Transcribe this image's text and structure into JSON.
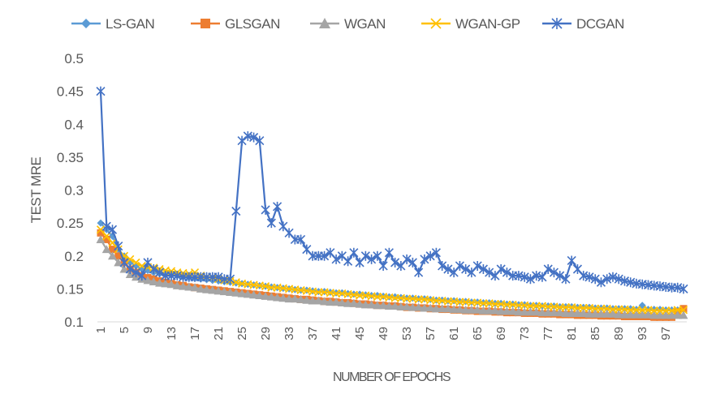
{
  "chart_data": {
    "type": "line",
    "title": "",
    "xlabel": "NUMBER OF EPOCHS",
    "ylabel": "TEST MRE",
    "ylim": [
      0.1,
      0.5
    ],
    "yticks": [
      "0.1",
      "0.15",
      "0.2",
      "0.25",
      "0.3",
      "0.35",
      "0.4",
      "0.45",
      "0.5"
    ],
    "xticks": [
      "1",
      "5",
      "9",
      "13",
      "17",
      "21",
      "25",
      "29",
      "33",
      "37",
      "41",
      "45",
      "49",
      "53",
      "57",
      "61",
      "65",
      "69",
      "73",
      "77",
      "81",
      "85",
      "89",
      "93",
      "97"
    ],
    "x_range": [
      1,
      100
    ],
    "grid": false,
    "legend_position": "top",
    "series": [
      {
        "name": "LS-GAN",
        "color": "#5B9BD5",
        "marker": "diamond",
        "values": [
          0.25,
          0.24,
          0.23,
          0.21,
          0.2,
          0.19,
          0.185,
          0.18,
          0.178,
          0.175,
          0.173,
          0.172,
          0.171,
          0.17,
          0.168,
          0.167,
          0.166,
          0.165,
          0.164,
          0.163,
          0.162,
          0.161,
          0.16,
          0.159,
          0.158,
          0.157,
          0.156,
          0.155,
          0.154,
          0.153,
          0.152,
          0.151,
          0.15,
          0.149,
          0.148,
          0.148,
          0.147,
          0.146,
          0.146,
          0.145,
          0.144,
          0.144,
          0.143,
          0.142,
          0.142,
          0.141,
          0.14,
          0.14,
          0.139,
          0.138,
          0.138,
          0.137,
          0.136,
          0.136,
          0.135,
          0.135,
          0.134,
          0.133,
          0.133,
          0.132,
          0.132,
          0.131,
          0.131,
          0.13,
          0.13,
          0.129,
          0.129,
          0.128,
          0.128,
          0.127,
          0.127,
          0.126,
          0.126,
          0.125,
          0.125,
          0.124,
          0.124,
          0.124,
          0.123,
          0.123,
          0.123,
          0.122,
          0.122,
          0.122,
          0.121,
          0.121,
          0.121,
          0.12,
          0.12,
          0.12,
          0.12,
          0.119,
          0.125,
          0.119,
          0.119,
          0.119,
          0.118,
          0.118,
          0.118,
          0.12
        ]
      },
      {
        "name": "GLSGAN",
        "color": "#ED7D31",
        "marker": "square",
        "values": [
          0.235,
          0.225,
          0.21,
          0.2,
          0.19,
          0.18,
          0.175,
          0.17,
          0.167,
          0.165,
          0.162,
          0.16,
          0.158,
          0.156,
          0.155,
          0.153,
          0.152,
          0.151,
          0.15,
          0.149,
          0.148,
          0.147,
          0.146,
          0.145,
          0.144,
          0.143,
          0.142,
          0.141,
          0.14,
          0.139,
          0.138,
          0.137,
          0.136,
          0.135,
          0.134,
          0.134,
          0.133,
          0.132,
          0.131,
          0.131,
          0.13,
          0.129,
          0.129,
          0.128,
          0.127,
          0.127,
          0.126,
          0.125,
          0.125,
          0.124,
          0.124,
          0.123,
          0.122,
          0.122,
          0.121,
          0.121,
          0.12,
          0.12,
          0.119,
          0.119,
          0.118,
          0.118,
          0.117,
          0.117,
          0.116,
          0.116,
          0.116,
          0.115,
          0.115,
          0.114,
          0.114,
          0.114,
          0.113,
          0.113,
          0.113,
          0.112,
          0.112,
          0.112,
          0.111,
          0.111,
          0.111,
          0.11,
          0.11,
          0.11,
          0.11,
          0.109,
          0.109,
          0.109,
          0.109,
          0.108,
          0.108,
          0.108,
          0.108,
          0.108,
          0.107,
          0.107,
          0.107,
          0.107,
          0.115,
          0.12
        ]
      },
      {
        "name": "WGAN",
        "color": "#A5A5A5",
        "marker": "triangle",
        "values": [
          0.225,
          0.21,
          0.2,
          0.19,
          0.18,
          0.172,
          0.168,
          0.165,
          0.163,
          0.161,
          0.159,
          0.158,
          0.157,
          0.155,
          0.154,
          0.153,
          0.152,
          0.15,
          0.149,
          0.148,
          0.147,
          0.146,
          0.145,
          0.144,
          0.143,
          0.142,
          0.141,
          0.14,
          0.139,
          0.138,
          0.137,
          0.136,
          0.135,
          0.135,
          0.134,
          0.133,
          0.132,
          0.132,
          0.131,
          0.13,
          0.13,
          0.129,
          0.128,
          0.128,
          0.127,
          0.126,
          0.126,
          0.125,
          0.125,
          0.124,
          0.124,
          0.123,
          0.123,
          0.122,
          0.122,
          0.121,
          0.121,
          0.12,
          0.12,
          0.12,
          0.119,
          0.119,
          0.118,
          0.118,
          0.118,
          0.117,
          0.117,
          0.117,
          0.116,
          0.116,
          0.116,
          0.115,
          0.115,
          0.115,
          0.115,
          0.114,
          0.114,
          0.114,
          0.114,
          0.113,
          0.113,
          0.113,
          0.113,
          0.112,
          0.112,
          0.112,
          0.112,
          0.112,
          0.111,
          0.111,
          0.111,
          0.111,
          0.111,
          0.111,
          0.11,
          0.11,
          0.11,
          0.11,
          0.11,
          0.11
        ]
      },
      {
        "name": "WGAN-GP",
        "color": "#FFC000",
        "marker": "x",
        "values": [
          0.24,
          0.23,
          0.22,
          0.21,
          0.2,
          0.195,
          0.19,
          0.185,
          0.183,
          0.182,
          0.18,
          0.178,
          0.177,
          0.175,
          0.174,
          0.173,
          0.175,
          0.17,
          0.168,
          0.167,
          0.165,
          0.163,
          0.162,
          0.16,
          0.158,
          0.157,
          0.156,
          0.155,
          0.154,
          0.152,
          0.152,
          0.151,
          0.15,
          0.149,
          0.148,
          0.147,
          0.146,
          0.145,
          0.145,
          0.144,
          0.143,
          0.143,
          0.142,
          0.141,
          0.14,
          0.14,
          0.139,
          0.138,
          0.138,
          0.137,
          0.136,
          0.136,
          0.135,
          0.135,
          0.134,
          0.134,
          0.133,
          0.132,
          0.132,
          0.131,
          0.131,
          0.13,
          0.13,
          0.129,
          0.129,
          0.128,
          0.128,
          0.127,
          0.127,
          0.126,
          0.126,
          0.125,
          0.125,
          0.124,
          0.124,
          0.124,
          0.123,
          0.123,
          0.122,
          0.122,
          0.122,
          0.121,
          0.121,
          0.121,
          0.12,
          0.12,
          0.12,
          0.119,
          0.119,
          0.119,
          0.118,
          0.118,
          0.118,
          0.118,
          0.117,
          0.117,
          0.117,
          0.117,
          0.118,
          0.118
        ]
      },
      {
        "name": "DCGAN",
        "color": "#4472C4",
        "marker": "asterisk",
        "values": [
          0.45,
          0.245,
          0.24,
          0.215,
          0.19,
          0.18,
          0.175,
          0.17,
          0.19,
          0.18,
          0.175,
          0.17,
          0.17,
          0.17,
          0.168,
          0.168,
          0.168,
          0.168,
          0.168,
          0.168,
          0.168,
          0.165,
          0.165,
          0.268,
          0.375,
          0.382,
          0.38,
          0.375,
          0.27,
          0.25,
          0.275,
          0.245,
          0.235,
          0.225,
          0.225,
          0.21,
          0.2,
          0.2,
          0.2,
          0.205,
          0.195,
          0.2,
          0.192,
          0.205,
          0.19,
          0.2,
          0.195,
          0.2,
          0.185,
          0.205,
          0.19,
          0.185,
          0.195,
          0.19,
          0.175,
          0.195,
          0.2,
          0.205,
          0.185,
          0.18,
          0.175,
          0.185,
          0.18,
          0.175,
          0.185,
          0.18,
          0.175,
          0.17,
          0.18,
          0.175,
          0.17,
          0.17,
          0.168,
          0.165,
          0.17,
          0.168,
          0.18,
          0.175,
          0.17,
          0.165,
          0.193,
          0.18,
          0.17,
          0.168,
          0.165,
          0.16,
          0.165,
          0.168,
          0.165,
          0.162,
          0.16,
          0.158,
          0.157,
          0.156,
          0.155,
          0.154,
          0.153,
          0.152,
          0.152,
          0.15
        ]
      }
    ]
  }
}
